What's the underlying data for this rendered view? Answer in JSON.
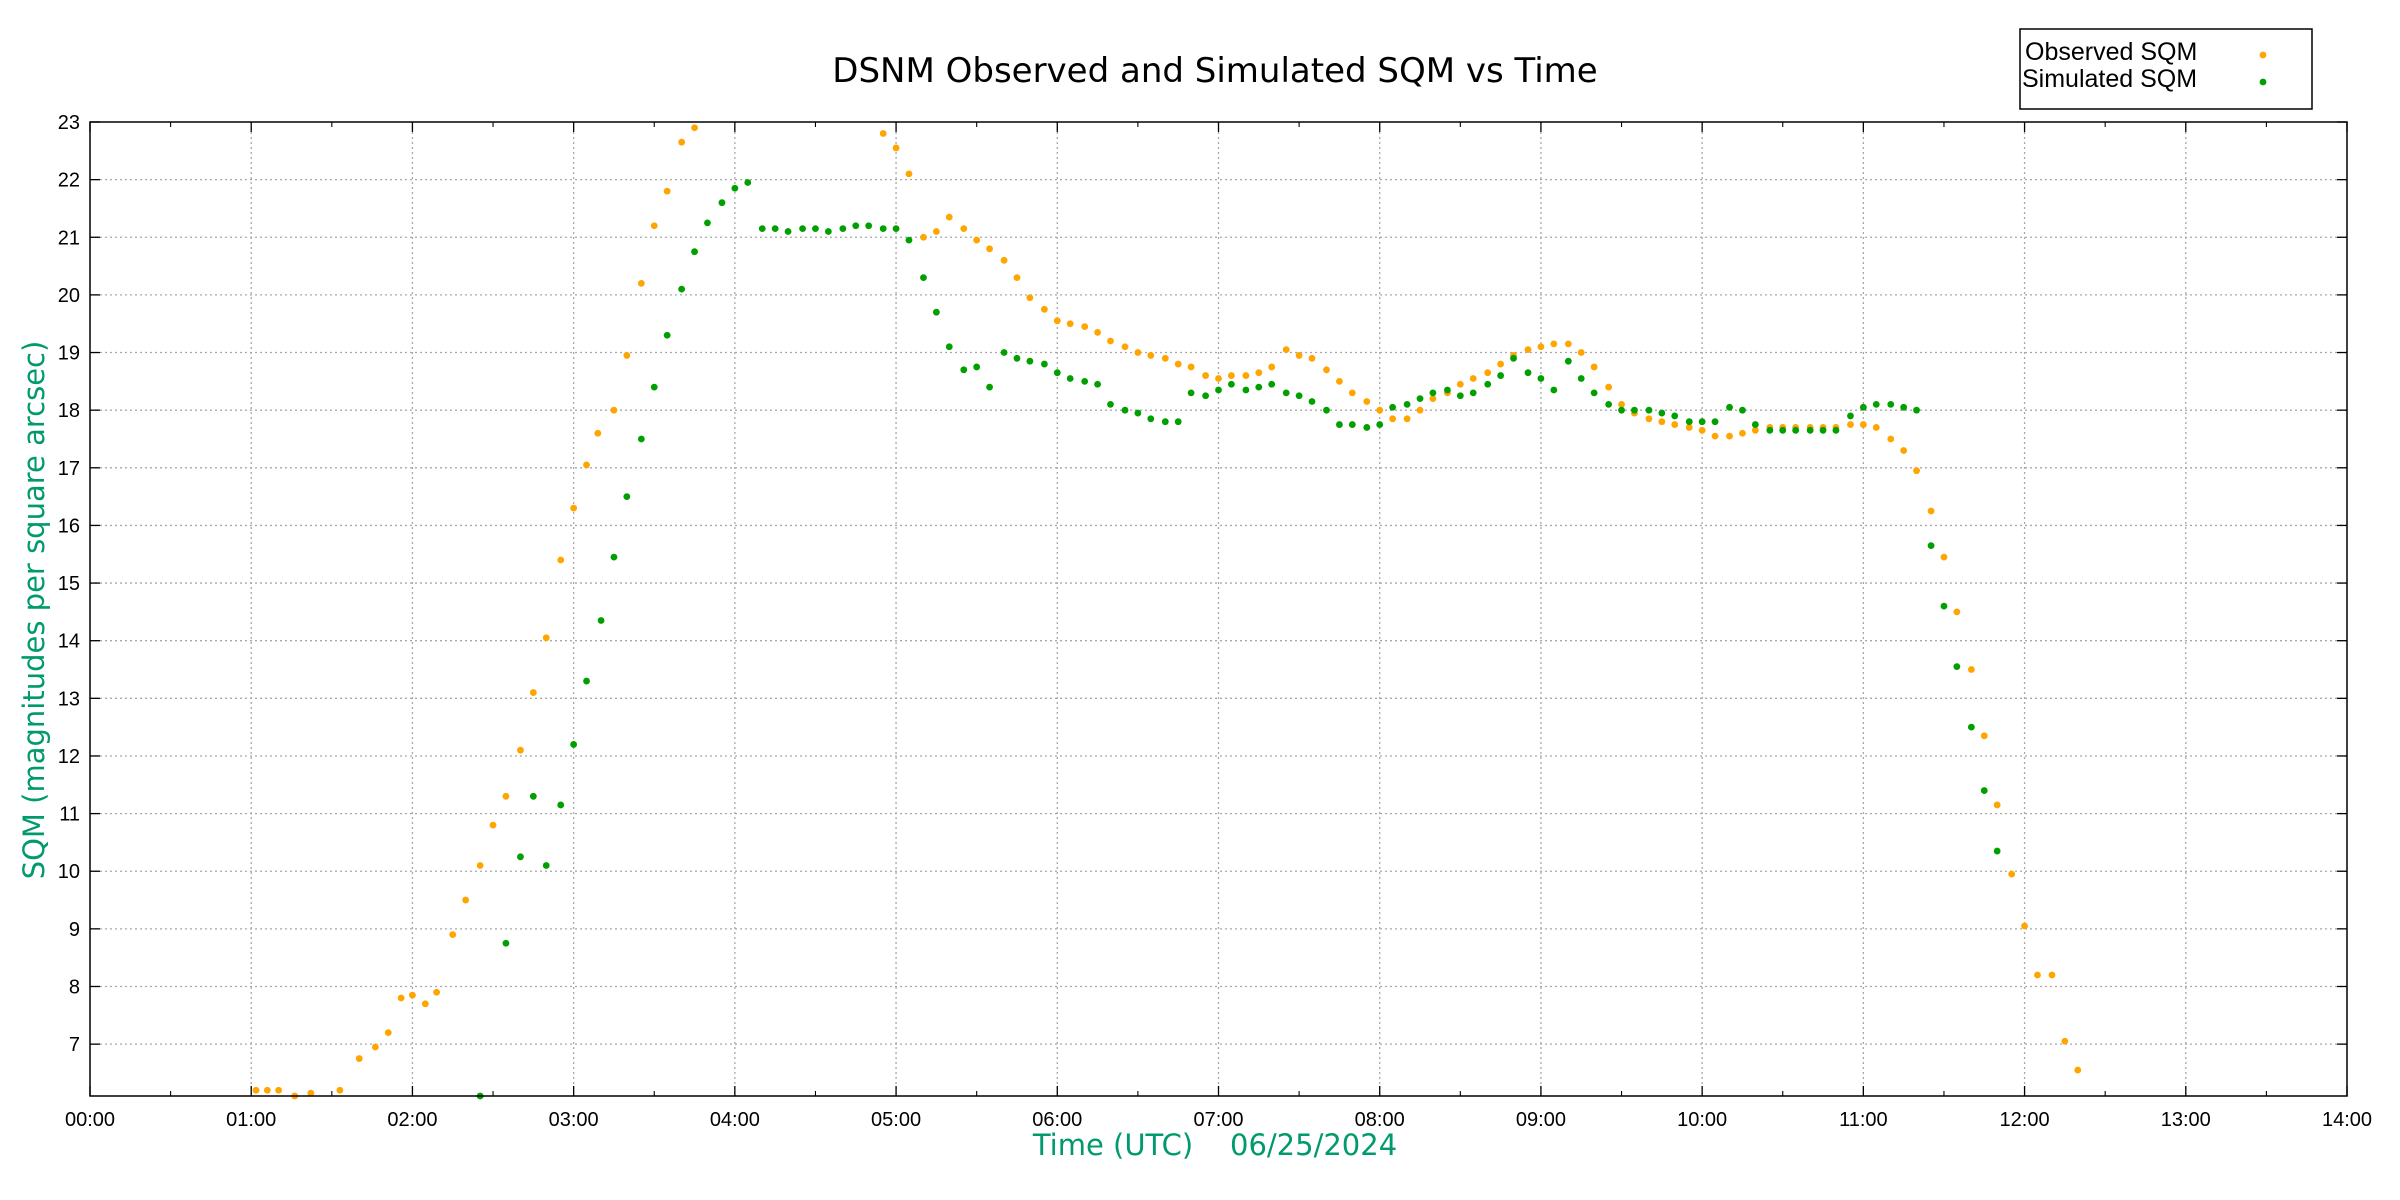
{
  "chart_data": {
    "type": "scatter",
    "title": "DSNM Observed and Simulated SQM vs Time",
    "xlabel": "Time (UTC)    06/25/2024",
    "ylabel": "SQM (magnitudes per square arcsec)",
    "axis_label_color": "#009a6e",
    "xlim": [
      0,
      14
    ],
    "ylim": [
      6.1,
      23
    ],
    "x_ticks": [
      0,
      1,
      2,
      3,
      4,
      5,
      6,
      7,
      8,
      9,
      10,
      11,
      12,
      13,
      14
    ],
    "x_tick_labels": [
      "00:00",
      "01:00",
      "02:00",
      "03:00",
      "04:00",
      "05:00",
      "06:00",
      "07:00",
      "08:00",
      "09:00",
      "10:00",
      "11:00",
      "12:00",
      "13:00",
      "14:00"
    ],
    "y_ticks": [
      7,
      8,
      9,
      10,
      11,
      12,
      13,
      14,
      15,
      16,
      17,
      18,
      19,
      20,
      21,
      22,
      23
    ],
    "grid": true,
    "legend_position": "top-right, outside plot",
    "series": [
      {
        "name": "Observed SQM",
        "color": "#ffa500",
        "x": [
          1.03,
          1.1,
          1.17,
          1.27,
          1.37,
          1.47,
          1.55,
          1.67,
          1.77,
          1.85,
          1.93,
          2.0,
          2.08,
          2.15,
          2.25,
          2.33,
          2.42,
          2.5,
          2.58,
          2.67,
          2.75,
          2.83,
          2.92,
          3.0,
          3.08,
          3.15,
          3.25,
          3.33,
          3.42,
          3.5,
          3.58,
          3.67,
          3.75,
          4.92,
          5.0,
          5.08,
          5.17,
          5.25,
          5.33,
          5.42,
          5.5,
          5.58,
          5.67,
          5.75,
          5.83,
          5.92,
          6.0,
          6.08,
          6.17,
          6.25,
          6.33,
          6.42,
          6.5,
          6.58,
          6.67,
          6.75,
          6.83,
          6.92,
          7.0,
          7.08,
          7.17,
          7.25,
          7.33,
          7.42,
          7.5,
          7.58,
          7.67,
          7.75,
          7.83,
          7.92,
          8.0,
          8.08,
          8.17,
          8.25,
          8.33,
          8.42,
          8.5,
          8.58,
          8.67,
          8.75,
          8.83,
          8.92,
          9.0,
          9.08,
          9.17,
          9.25,
          9.33,
          9.42,
          9.5,
          9.58,
          9.67,
          9.75,
          9.83,
          9.92,
          10.0,
          10.08,
          10.17,
          10.25,
          10.33,
          10.42,
          10.5,
          10.58,
          10.67,
          10.75,
          10.83,
          10.92,
          11.0,
          11.08,
          11.17,
          11.25,
          11.33,
          11.42,
          11.5,
          11.58,
          11.67,
          11.75,
          11.83,
          11.92,
          12.0,
          12.08,
          12.17,
          12.25,
          12.33
        ],
        "y": [
          6.2,
          6.2,
          6.2,
          6.1,
          6.15,
          6.05,
          6.2,
          6.75,
          6.95,
          7.2,
          7.8,
          7.85,
          7.7,
          7.9,
          8.9,
          9.5,
          10.1,
          10.8,
          11.3,
          12.1,
          13.1,
          14.05,
          15.4,
          16.3,
          17.05,
          17.6,
          18.0,
          18.95,
          20.2,
          21.2,
          21.8,
          22.65,
          22.9,
          22.8,
          22.55,
          22.1,
          21.0,
          21.1,
          21.35,
          21.15,
          20.95,
          20.8,
          20.6,
          20.3,
          19.95,
          19.75,
          19.55,
          19.5,
          19.45,
          19.35,
          19.2,
          19.1,
          19.0,
          18.95,
          18.9,
          18.8,
          18.75,
          18.6,
          18.55,
          18.6,
          18.6,
          18.65,
          18.75,
          19.05,
          18.95,
          18.9,
          18.7,
          18.5,
          18.3,
          18.15,
          18.0,
          17.85,
          17.85,
          18.0,
          18.2,
          18.3,
          18.45,
          18.55,
          18.65,
          18.8,
          18.95,
          19.05,
          19.1,
          19.15,
          19.15,
          19.0,
          18.75,
          18.4,
          18.1,
          17.95,
          17.85,
          17.8,
          17.75,
          17.7,
          17.65,
          17.55,
          17.55,
          17.6,
          17.65,
          17.7,
          17.7,
          17.7,
          17.7,
          17.7,
          17.7,
          17.75,
          17.75,
          17.7,
          17.5,
          17.3,
          16.95,
          16.25,
          15.45,
          14.5,
          13.5,
          12.35,
          11.15,
          9.95,
          9.05,
          8.2,
          8.2,
          7.05,
          6.55
        ]
      },
      {
        "name": "Simulated SQM",
        "color": "#00a000",
        "x": [
          2.42,
          2.5,
          2.58,
          2.67,
          2.75,
          2.83,
          2.92,
          3.0,
          3.08,
          3.17,
          3.25,
          3.33,
          3.42,
          3.5,
          3.58,
          3.67,
          3.75,
          3.83,
          3.92,
          4.0,
          4.08,
          4.17,
          4.25,
          4.33,
          4.42,
          4.5,
          4.58,
          4.67,
          4.75,
          4.83,
          4.92,
          5.0,
          5.08,
          5.17,
          5.25,
          5.33,
          5.42,
          5.5,
          5.58,
          5.67,
          5.75,
          5.83,
          5.92,
          6.0,
          6.08,
          6.17,
          6.25,
          6.33,
          6.42,
          6.5,
          6.58,
          6.67,
          6.75,
          6.83,
          6.92,
          7.0,
          7.08,
          7.17,
          7.25,
          7.33,
          7.42,
          7.5,
          7.58,
          7.67,
          7.75,
          7.83,
          7.92,
          8.0,
          8.08,
          8.17,
          8.25,
          8.33,
          8.42,
          8.5,
          8.58,
          8.67,
          8.75,
          8.83,
          8.92,
          9.0,
          9.08,
          9.17,
          9.25,
          9.33,
          9.42,
          9.5,
          9.58,
          9.67,
          9.75,
          9.83,
          9.92,
          10.0,
          10.08,
          10.17,
          10.25,
          10.33,
          10.42,
          10.5,
          10.58,
          10.67,
          10.75,
          10.83,
          10.92,
          11.0,
          11.08,
          11.17,
          11.25,
          11.33,
          11.42,
          11.5,
          11.58,
          11.67,
          11.75,
          11.83
        ],
        "y": [
          6.1,
          6.05,
          8.75,
          10.25,
          11.3,
          10.1,
          11.15,
          12.2,
          13.3,
          14.35,
          15.45,
          16.5,
          17.5,
          18.4,
          19.3,
          20.1,
          20.75,
          21.25,
          21.6,
          21.85,
          21.95,
          21.15,
          21.15,
          21.1,
          21.15,
          21.15,
          21.1,
          21.15,
          21.2,
          21.2,
          21.15,
          21.15,
          20.95,
          20.3,
          19.7,
          19.1,
          18.7,
          18.75,
          18.4,
          19.0,
          18.9,
          18.85,
          18.8,
          18.65,
          18.55,
          18.5,
          18.45,
          18.1,
          18.0,
          17.95,
          17.85,
          17.8,
          17.8,
          18.3,
          18.25,
          18.35,
          18.45,
          18.35,
          18.4,
          18.45,
          18.3,
          18.25,
          18.15,
          18.0,
          17.75,
          17.75,
          17.7,
          17.75,
          18.05,
          18.1,
          18.2,
          18.3,
          18.35,
          18.25,
          18.3,
          18.45,
          18.6,
          18.9,
          18.65,
          18.55,
          18.35,
          18.85,
          18.55,
          18.3,
          18.1,
          18.0,
          18.0,
          18.0,
          17.95,
          17.9,
          17.8,
          17.8,
          17.8,
          18.05,
          18.0,
          17.75,
          17.65,
          17.65,
          17.65,
          17.65,
          17.65,
          17.65,
          17.9,
          18.05,
          18.1,
          18.1,
          18.05,
          18.0,
          15.65,
          14.6,
          13.55,
          12.5,
          11.4,
          10.35
        ]
      }
    ]
  }
}
